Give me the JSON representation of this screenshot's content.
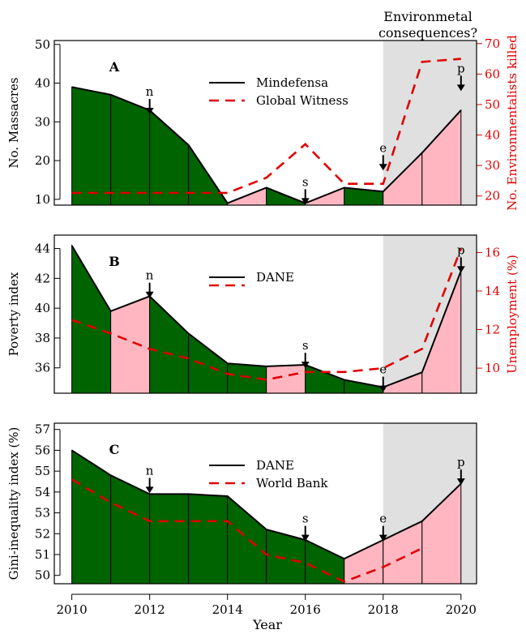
{
  "header_note": [
    "Environmetal",
    "consequences?"
  ],
  "xlabel": "Year",
  "x_ticks": [
    2010,
    2012,
    2014,
    2016,
    2018,
    2020
  ],
  "colors": {
    "green": "#006400",
    "pink": "#ffb6c1",
    "shade": "#e0e0e0",
    "red": "#e00000",
    "black": "#000000"
  },
  "chart_data": [
    {
      "type": "area",
      "panel": "A",
      "ylabel": "No. Massacres",
      "ylabel_right": "No. Environmentalists killed",
      "ylim": [
        8.5,
        51
      ],
      "yticks": [
        10,
        20,
        30,
        40,
        50
      ],
      "ylim_right": [
        17,
        71
      ],
      "yticks_right": [
        20,
        30,
        40,
        50,
        60,
        70
      ],
      "shaded_region": [
        2018,
        2020.4
      ],
      "legend_position": "top-center",
      "series": [
        {
          "name": "Mindefensa",
          "axis": "left",
          "style": "solid",
          "x": [
            2010,
            2011,
            2012,
            2013,
            2014,
            2015,
            2016,
            2017,
            2018,
            2019,
            2020
          ],
          "y": [
            39,
            37,
            33,
            24,
            9,
            13,
            9,
            13,
            12,
            22,
            33
          ]
        },
        {
          "name": "Global Witness",
          "axis": "right",
          "style": "dashed",
          "x": [
            2010,
            2011,
            2012,
            2013,
            2014,
            2015,
            2016,
            2017,
            2018,
            2019,
            2020
          ],
          "y": [
            21,
            21,
            21,
            21,
            21,
            26,
            37,
            24,
            24,
            64,
            65
          ]
        }
      ],
      "fill_colors": [
        "green",
        "green",
        "green",
        "green",
        "pink",
        "green",
        "pink",
        "green",
        "pink",
        "pink"
      ],
      "annotations": [
        {
          "label": "n",
          "x": 2012,
          "y": 35.5
        },
        {
          "label": "s",
          "x": 2016,
          "y": 12.2
        },
        {
          "label": "e",
          "x": 2018,
          "y": 21
        },
        {
          "label": "p",
          "x": 2020,
          "y": 41.5
        }
      ]
    },
    {
      "type": "area",
      "panel": "B",
      "ylabel": "Poverty index",
      "ylabel_right": "Unemployment (%)",
      "ylim": [
        34.3,
        44.9
      ],
      "yticks": [
        36,
        38,
        40,
        42,
        44
      ],
      "ylim_right": [
        8.7,
        16.9
      ],
      "yticks_right": [
        10,
        12,
        14,
        16
      ],
      "shaded_region": [
        2018,
        2020.4
      ],
      "legend_position": "top-center",
      "series": [
        {
          "name": "DANE",
          "axis": "left",
          "style": "solid",
          "x": [
            2010,
            2011,
            2012,
            2013,
            2014,
            2015,
            2016,
            2017,
            2018,
            2019,
            2020
          ],
          "y": [
            44.2,
            39.8,
            40.8,
            38.3,
            36.3,
            36.1,
            36.2,
            35.2,
            34.7,
            35.7,
            42.5
          ]
        },
        {
          "name": "DANE",
          "axis": "right",
          "style": "dashed",
          "x": [
            2010,
            2011,
            2012,
            2013,
            2014,
            2015,
            2016,
            2017,
            2018,
            2019,
            2020
          ],
          "y": [
            12.5,
            11.8,
            11.0,
            10.5,
            9.7,
            9.4,
            9.8,
            9.8,
            10.0,
            11.0,
            16.2
          ]
        }
      ],
      "fill_colors": [
        "green",
        "pink",
        "green",
        "green",
        "green",
        "pink",
        "green",
        "green",
        "pink",
        "pink"
      ],
      "legend_entries": [
        "DANE"
      ],
      "annotations": [
        {
          "label": "n",
          "x": 2012,
          "y": 41.6
        },
        {
          "label": "s",
          "x": 2016,
          "y": 36.9
        },
        {
          "label": "e",
          "x": 2018,
          "y": 35.3
        },
        {
          "label": "p",
          "x": 2020,
          "y": 43.3
        }
      ]
    },
    {
      "type": "area",
      "panel": "C",
      "ylabel": "Gini-inequality index (%)",
      "ylim": [
        49.6,
        57.3
      ],
      "yticks": [
        50,
        51,
        52,
        53,
        54,
        55,
        56,
        57
      ],
      "shaded_region": [
        2018,
        2020.4
      ],
      "legend_position": "top-center",
      "series": [
        {
          "name": "DANE",
          "axis": "left",
          "style": "solid",
          "x": [
            2010,
            2011,
            2012,
            2013,
            2014,
            2015,
            2016,
            2017,
            2018,
            2019,
            2020
          ],
          "y": [
            56.0,
            54.8,
            53.9,
            53.9,
            53.8,
            52.2,
            51.7,
            50.8,
            51.7,
            52.6,
            54.4
          ]
        },
        {
          "name": "World Bank",
          "axis": "left",
          "style": "dashed",
          "x": [
            2010,
            2011,
            2012,
            2013,
            2014,
            2015,
            2016,
            2017,
            2018,
            2019
          ],
          "y": [
            54.6,
            53.5,
            52.6,
            52.6,
            52.6,
            51.0,
            50.6,
            49.7,
            50.4,
            51.3
          ]
        }
      ],
      "fill_colors": [
        "green",
        "green",
        "green",
        "green",
        "green",
        "green",
        "green",
        "pink",
        "pink",
        "pink"
      ],
      "annotations": [
        {
          "label": "n",
          "x": 2012,
          "y": 54.6
        },
        {
          "label": "s",
          "x": 2016,
          "y": 52.3
        },
        {
          "label": "e",
          "x": 2018,
          "y": 52.3
        },
        {
          "label": "p",
          "x": 2020,
          "y": 55.0
        }
      ]
    }
  ]
}
